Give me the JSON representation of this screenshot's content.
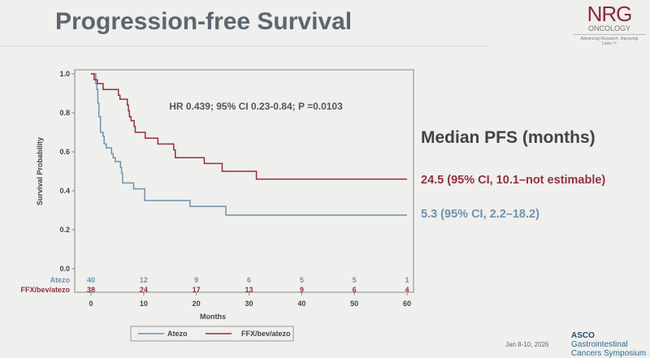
{
  "slide": {
    "title": "Progression-free Survival",
    "logo": {
      "name": "NRG",
      "subtitle": "ONCOLOGY",
      "tagline": "Advancing Research. Improving Lives.™"
    },
    "median_title": "Median PFS (months)",
    "medians": [
      {
        "series": "FFX/bev/atezo",
        "text": "24.5 (95% CI, 10.1–not estimable)"
      },
      {
        "series": "Atezo",
        "text": "5.3 (95% CI, 2.2–18.2)"
      }
    ],
    "footer_date": "Jan 8-10, 2026",
    "footer_logo": {
      "brand": "ASCO",
      "line1": "Gastrointestinal",
      "line2": "Cancers Symposium"
    }
  },
  "chart_data": {
    "type": "line",
    "subtype": "kaplan-meier step",
    "annotation": "HR 0.439; 95% CI 0.23-0.84; P =0.0103",
    "xlabel": "Months",
    "ylabel": "Survival Probability",
    "xlim": [
      0,
      60
    ],
    "ylim": [
      0,
      1.0
    ],
    "xticks": [
      "0",
      "10",
      "20",
      "30",
      "40",
      "50",
      "60"
    ],
    "yticks": [
      "0.0",
      "0.2",
      "0.4",
      "0.6",
      "0.8",
      "1.0"
    ],
    "grid": false,
    "legend": "bottom",
    "colors": {
      "Atezo": "#6f92ad",
      "FFX/bev/atezo": "#93303f"
    },
    "series": [
      {
        "name": "Atezo",
        "x": [
          0,
          0.9,
          1.1,
          1.3,
          1.5,
          1.8,
          2.3,
          2.5,
          2.9,
          3.9,
          4.2,
          4.6,
          5.6,
          5.8,
          6.0,
          8.1,
          10.2,
          18.8,
          25.6,
          60
        ],
        "y": [
          1.0,
          0.95,
          0.92,
          0.85,
          0.78,
          0.7,
          0.68,
          0.64,
          0.62,
          0.59,
          0.57,
          0.55,
          0.52,
          0.49,
          0.44,
          0.41,
          0.35,
          0.32,
          0.275,
          0.275
        ]
      },
      {
        "name": "FFX/bev/atezo",
        "x": [
          0,
          0.6,
          1.2,
          2.3,
          5.2,
          5.5,
          6.9,
          7.1,
          7.3,
          7.6,
          8.2,
          8.4,
          10.3,
          12.7,
          15.7,
          16.0,
          21.5,
          24.9,
          31.4,
          60
        ],
        "y": [
          1.0,
          0.97,
          0.95,
          0.92,
          0.89,
          0.87,
          0.84,
          0.81,
          0.78,
          0.76,
          0.73,
          0.7,
          0.67,
          0.64,
          0.61,
          0.57,
          0.54,
          0.5,
          0.46,
          0.46
        ]
      }
    ],
    "risk_table": {
      "times": [
        0,
        10,
        20,
        30,
        40,
        50,
        60
      ],
      "rows": [
        {
          "label": "Atezo",
          "values": [
            "40",
            "12",
            "9",
            "6",
            "5",
            "5",
            "1"
          ]
        },
        {
          "label": "FFX/bev/atezo",
          "values": [
            "38",
            "24",
            "17",
            "13",
            "9",
            "6",
            "4"
          ]
        }
      ]
    }
  }
}
